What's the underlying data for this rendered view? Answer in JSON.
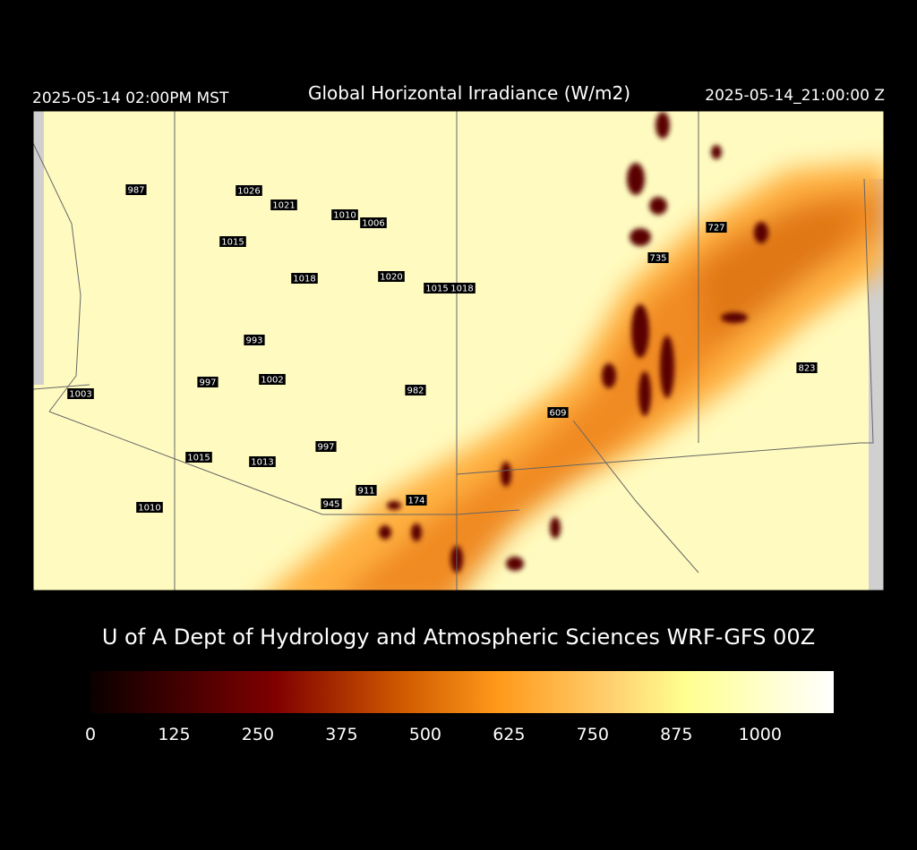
{
  "header": {
    "left": "2025-05-14 02:00PM MST",
    "title": "Global Horizontal Irradiance (W/m2)",
    "right": "2025-05-14_21:00:00 Z"
  },
  "map": {
    "labels": [
      "987",
      "1026",
      "1021",
      "1010",
      "1006",
      "1015",
      "727",
      "735",
      "1018",
      "1020",
      "1015",
      "1018",
      "993",
      "823",
      "997",
      "1002",
      "1003",
      "982",
      "609",
      "997",
      "1015",
      "1013",
      "911",
      "174",
      "945",
      "1010"
    ]
  },
  "credit": "U of A Dept of Hydrology and Atmospheric Sciences WRF-GFS 00Z",
  "colorbar": {
    "range": [
      0,
      1110
    ],
    "ticks": [
      0,
      125,
      250,
      375,
      500,
      625,
      750,
      875,
      1000
    ]
  }
}
